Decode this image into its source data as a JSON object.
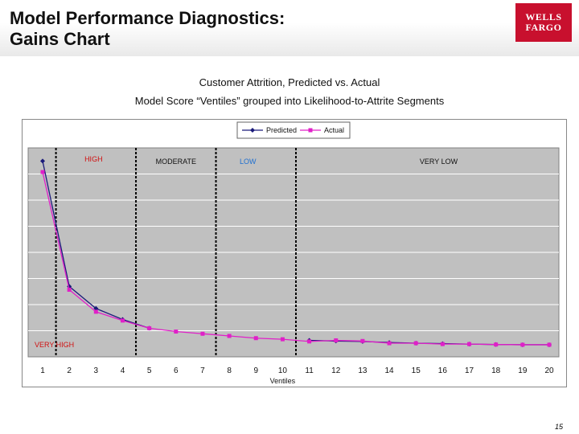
{
  "page": {
    "title_lines": [
      "Model Performance Diagnostics:",
      "Gains Chart"
    ],
    "logo_lines": [
      "WELLS",
      "FARGO"
    ],
    "subtitle_1": "Customer Attrition, Predicted vs. Actual",
    "subtitle_2": "Model Score “Ventiles” grouped into Likelihood-to-Attrite Segments",
    "page_number": "15"
  },
  "chart_data": {
    "type": "line",
    "x": [
      1,
      2,
      3,
      4,
      5,
      6,
      7,
      8,
      9,
      10,
      11,
      12,
      13,
      14,
      15,
      16,
      17,
      18,
      19,
      20
    ],
    "xlabel": "Ventiles",
    "ylabel": "",
    "grid": true,
    "legend_position": "top-center",
    "series": [
      {
        "name": "Predicted",
        "color": "#1a1a7a",
        "marker": "diamond",
        "values": [
          8.4,
          2.7,
          1.7,
          1.2,
          0.8,
          null,
          null,
          null,
          null,
          null,
          0.25,
          0.22,
          0.2,
          0.15,
          0.12,
          0.1,
          0.08,
          0.06,
          0.05,
          0.05
        ]
      },
      {
        "name": "Actual",
        "color": "#e020c8",
        "marker": "square",
        "values": [
          7.9,
          2.55,
          1.55,
          1.15,
          0.8,
          0.65,
          0.55,
          0.45,
          0.35,
          0.3,
          0.2,
          0.25,
          0.22,
          0.12,
          0.12,
          0.08,
          0.08,
          0.06,
          0.05,
          0.05
        ]
      }
    ],
    "segments": [
      {
        "label": "VERY HIGH",
        "color": "#d01010"
      },
      {
        "label": "HIGH",
        "color": "#d01010"
      },
      {
        "label": "MODERATE",
        "color": "#111111"
      },
      {
        "label": "LOW",
        "color": "#1e6fd0"
      },
      {
        "label": "VERY LOW",
        "color": "#111111"
      }
    ],
    "segment_boundaries": [
      1.5,
      4.5,
      7.5,
      10.5
    ],
    "ylim": [
      -0.5,
      9
    ]
  }
}
